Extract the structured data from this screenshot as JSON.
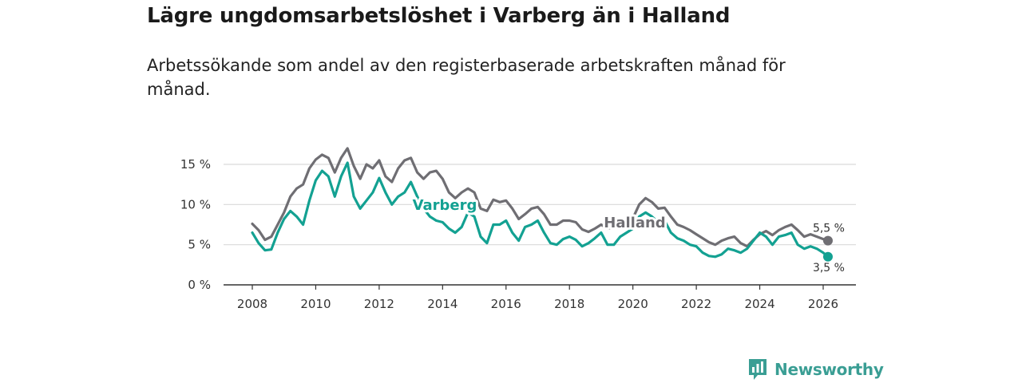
{
  "title": "Lägre ungdomsarbetslöshet i Varberg än i Halland",
  "subtitle": "Arbetssökande som andel av den registerbaserade arbetskraften månad för månad.",
  "brand": {
    "name": "Newsworthy"
  },
  "colors": {
    "varberg": "#13a192",
    "halland": "#6f6e73",
    "grid": "#d9d9d9",
    "axis": "#333333"
  },
  "chart_data": {
    "type": "line",
    "title": "Lägre ungdomsarbetslöshet i Varberg än i Halland",
    "xlim": [
      2008,
      2026.3
    ],
    "ylim": [
      0,
      17
    ],
    "x_ticks": [
      2008,
      2010,
      2012,
      2014,
      2016,
      2018,
      2020,
      2022,
      2024,
      2026
    ],
    "x_tick_labels": [
      "2008",
      "2010",
      "2012",
      "2014",
      "2016",
      "2018",
      "2020",
      "2022",
      "2024",
      "2026"
    ],
    "y_ticks": [
      0,
      5,
      10,
      15
    ],
    "y_tick_labels": [
      "0 %",
      "5 %",
      "10 %",
      "15 %"
    ],
    "series": [
      {
        "name": "Halland",
        "end_label": "5,5 %",
        "points": [
          [
            2008.0,
            7.6
          ],
          [
            2008.2,
            6.8
          ],
          [
            2008.4,
            5.6
          ],
          [
            2008.6,
            6.0
          ],
          [
            2008.8,
            7.5
          ],
          [
            2009.0,
            9.0
          ],
          [
            2009.2,
            11.0
          ],
          [
            2009.4,
            12.0
          ],
          [
            2009.6,
            12.5
          ],
          [
            2009.8,
            14.5
          ],
          [
            2010.0,
            15.6
          ],
          [
            2010.2,
            16.2
          ],
          [
            2010.4,
            15.8
          ],
          [
            2010.6,
            14.0
          ],
          [
            2010.8,
            15.8
          ],
          [
            2011.0,
            17.0
          ],
          [
            2011.2,
            14.8
          ],
          [
            2011.4,
            13.2
          ],
          [
            2011.6,
            15.0
          ],
          [
            2011.8,
            14.5
          ],
          [
            2012.0,
            15.5
          ],
          [
            2012.2,
            13.5
          ],
          [
            2012.4,
            12.8
          ],
          [
            2012.6,
            14.5
          ],
          [
            2012.8,
            15.5
          ],
          [
            2013.0,
            15.8
          ],
          [
            2013.2,
            14.0
          ],
          [
            2013.4,
            13.2
          ],
          [
            2013.6,
            14.0
          ],
          [
            2013.8,
            14.2
          ],
          [
            2014.0,
            13.2
          ],
          [
            2014.2,
            11.5
          ],
          [
            2014.4,
            10.8
          ],
          [
            2014.6,
            11.5
          ],
          [
            2014.8,
            12.0
          ],
          [
            2015.0,
            11.5
          ],
          [
            2015.2,
            9.5
          ],
          [
            2015.4,
            9.2
          ],
          [
            2015.6,
            10.6
          ],
          [
            2015.8,
            10.3
          ],
          [
            2016.0,
            10.5
          ],
          [
            2016.2,
            9.5
          ],
          [
            2016.4,
            8.2
          ],
          [
            2016.6,
            8.8
          ],
          [
            2016.8,
            9.5
          ],
          [
            2017.0,
            9.7
          ],
          [
            2017.2,
            8.8
          ],
          [
            2017.4,
            7.5
          ],
          [
            2017.6,
            7.5
          ],
          [
            2017.8,
            8.0
          ],
          [
            2018.0,
            8.0
          ],
          [
            2018.2,
            7.8
          ],
          [
            2018.4,
            6.9
          ],
          [
            2018.6,
            6.6
          ],
          [
            2018.8,
            7.0
          ],
          [
            2019.0,
            7.5
          ],
          [
            2019.2,
            7.0
          ],
          [
            2019.4,
            7.2
          ],
          [
            2019.6,
            7.6
          ],
          [
            2019.8,
            8.0
          ],
          [
            2020.0,
            8.3
          ],
          [
            2020.2,
            10.0
          ],
          [
            2020.4,
            10.8
          ],
          [
            2020.6,
            10.3
          ],
          [
            2020.8,
            9.5
          ],
          [
            2021.0,
            9.6
          ],
          [
            2021.2,
            8.5
          ],
          [
            2021.4,
            7.5
          ],
          [
            2021.6,
            7.2
          ],
          [
            2021.8,
            6.8
          ],
          [
            2022.0,
            6.3
          ],
          [
            2022.2,
            5.8
          ],
          [
            2022.4,
            5.3
          ],
          [
            2022.6,
            5.0
          ],
          [
            2022.8,
            5.5
          ],
          [
            2023.0,
            5.8
          ],
          [
            2023.2,
            6.0
          ],
          [
            2023.4,
            5.2
          ],
          [
            2023.6,
            4.8
          ],
          [
            2023.8,
            5.6
          ],
          [
            2024.0,
            6.3
          ],
          [
            2024.2,
            6.7
          ],
          [
            2024.4,
            6.2
          ],
          [
            2024.6,
            6.8
          ],
          [
            2024.8,
            7.2
          ],
          [
            2025.0,
            7.5
          ],
          [
            2025.2,
            6.8
          ],
          [
            2025.4,
            6.0
          ],
          [
            2025.6,
            6.3
          ],
          [
            2025.8,
            6.0
          ],
          [
            2026.0,
            5.7
          ],
          [
            2026.15,
            5.5
          ]
        ]
      },
      {
        "name": "Varberg",
        "end_label": "3,5 %",
        "points": [
          [
            2008.0,
            6.5
          ],
          [
            2008.2,
            5.2
          ],
          [
            2008.4,
            4.3
          ],
          [
            2008.6,
            4.4
          ],
          [
            2008.8,
            6.5
          ],
          [
            2009.0,
            8.2
          ],
          [
            2009.2,
            9.2
          ],
          [
            2009.4,
            8.5
          ],
          [
            2009.6,
            7.5
          ],
          [
            2009.8,
            10.5
          ],
          [
            2010.0,
            13.0
          ],
          [
            2010.2,
            14.2
          ],
          [
            2010.4,
            13.5
          ],
          [
            2010.6,
            11.0
          ],
          [
            2010.8,
            13.5
          ],
          [
            2011.0,
            15.2
          ],
          [
            2011.2,
            11.0
          ],
          [
            2011.4,
            9.5
          ],
          [
            2011.6,
            10.5
          ],
          [
            2011.8,
            11.5
          ],
          [
            2012.0,
            13.3
          ],
          [
            2012.2,
            11.5
          ],
          [
            2012.4,
            10.0
          ],
          [
            2012.6,
            11.0
          ],
          [
            2012.8,
            11.5
          ],
          [
            2013.0,
            12.8
          ],
          [
            2013.2,
            11.0
          ],
          [
            2013.4,
            9.5
          ],
          [
            2013.6,
            8.5
          ],
          [
            2013.8,
            8.0
          ],
          [
            2014.0,
            7.8
          ],
          [
            2014.2,
            7.0
          ],
          [
            2014.4,
            6.5
          ],
          [
            2014.6,
            7.2
          ],
          [
            2014.8,
            9.0
          ],
          [
            2015.0,
            8.5
          ],
          [
            2015.2,
            6.0
          ],
          [
            2015.4,
            5.2
          ],
          [
            2015.6,
            7.5
          ],
          [
            2015.8,
            7.5
          ],
          [
            2016.0,
            8.0
          ],
          [
            2016.2,
            6.5
          ],
          [
            2016.4,
            5.5
          ],
          [
            2016.6,
            7.2
          ],
          [
            2016.8,
            7.5
          ],
          [
            2017.0,
            8.0
          ],
          [
            2017.2,
            6.5
          ],
          [
            2017.4,
            5.2
          ],
          [
            2017.6,
            5.0
          ],
          [
            2017.8,
            5.7
          ],
          [
            2018.0,
            6.0
          ],
          [
            2018.2,
            5.6
          ],
          [
            2018.4,
            4.8
          ],
          [
            2018.6,
            5.2
          ],
          [
            2018.8,
            5.8
          ],
          [
            2019.0,
            6.5
          ],
          [
            2019.2,
            5.0
          ],
          [
            2019.4,
            5.0
          ],
          [
            2019.6,
            6.0
          ],
          [
            2019.8,
            6.5
          ],
          [
            2020.0,
            7.0
          ],
          [
            2020.2,
            8.5
          ],
          [
            2020.4,
            9.0
          ],
          [
            2020.6,
            8.5
          ],
          [
            2020.8,
            7.8
          ],
          [
            2021.0,
            8.0
          ],
          [
            2021.2,
            6.5
          ],
          [
            2021.4,
            5.8
          ],
          [
            2021.6,
            5.5
          ],
          [
            2021.8,
            5.0
          ],
          [
            2022.0,
            4.8
          ],
          [
            2022.2,
            4.0
          ],
          [
            2022.4,
            3.6
          ],
          [
            2022.6,
            3.5
          ],
          [
            2022.8,
            3.8
          ],
          [
            2023.0,
            4.5
          ],
          [
            2023.2,
            4.3
          ],
          [
            2023.4,
            4.0
          ],
          [
            2023.6,
            4.5
          ],
          [
            2023.8,
            5.5
          ],
          [
            2024.0,
            6.5
          ],
          [
            2024.2,
            6.0
          ],
          [
            2024.4,
            5.0
          ],
          [
            2024.6,
            6.0
          ],
          [
            2024.8,
            6.2
          ],
          [
            2025.0,
            6.5
          ],
          [
            2025.2,
            5.0
          ],
          [
            2025.4,
            4.5
          ],
          [
            2025.6,
            4.8
          ],
          [
            2025.8,
            4.5
          ],
          [
            2026.0,
            4.0
          ],
          [
            2026.15,
            3.5
          ]
        ]
      }
    ]
  }
}
